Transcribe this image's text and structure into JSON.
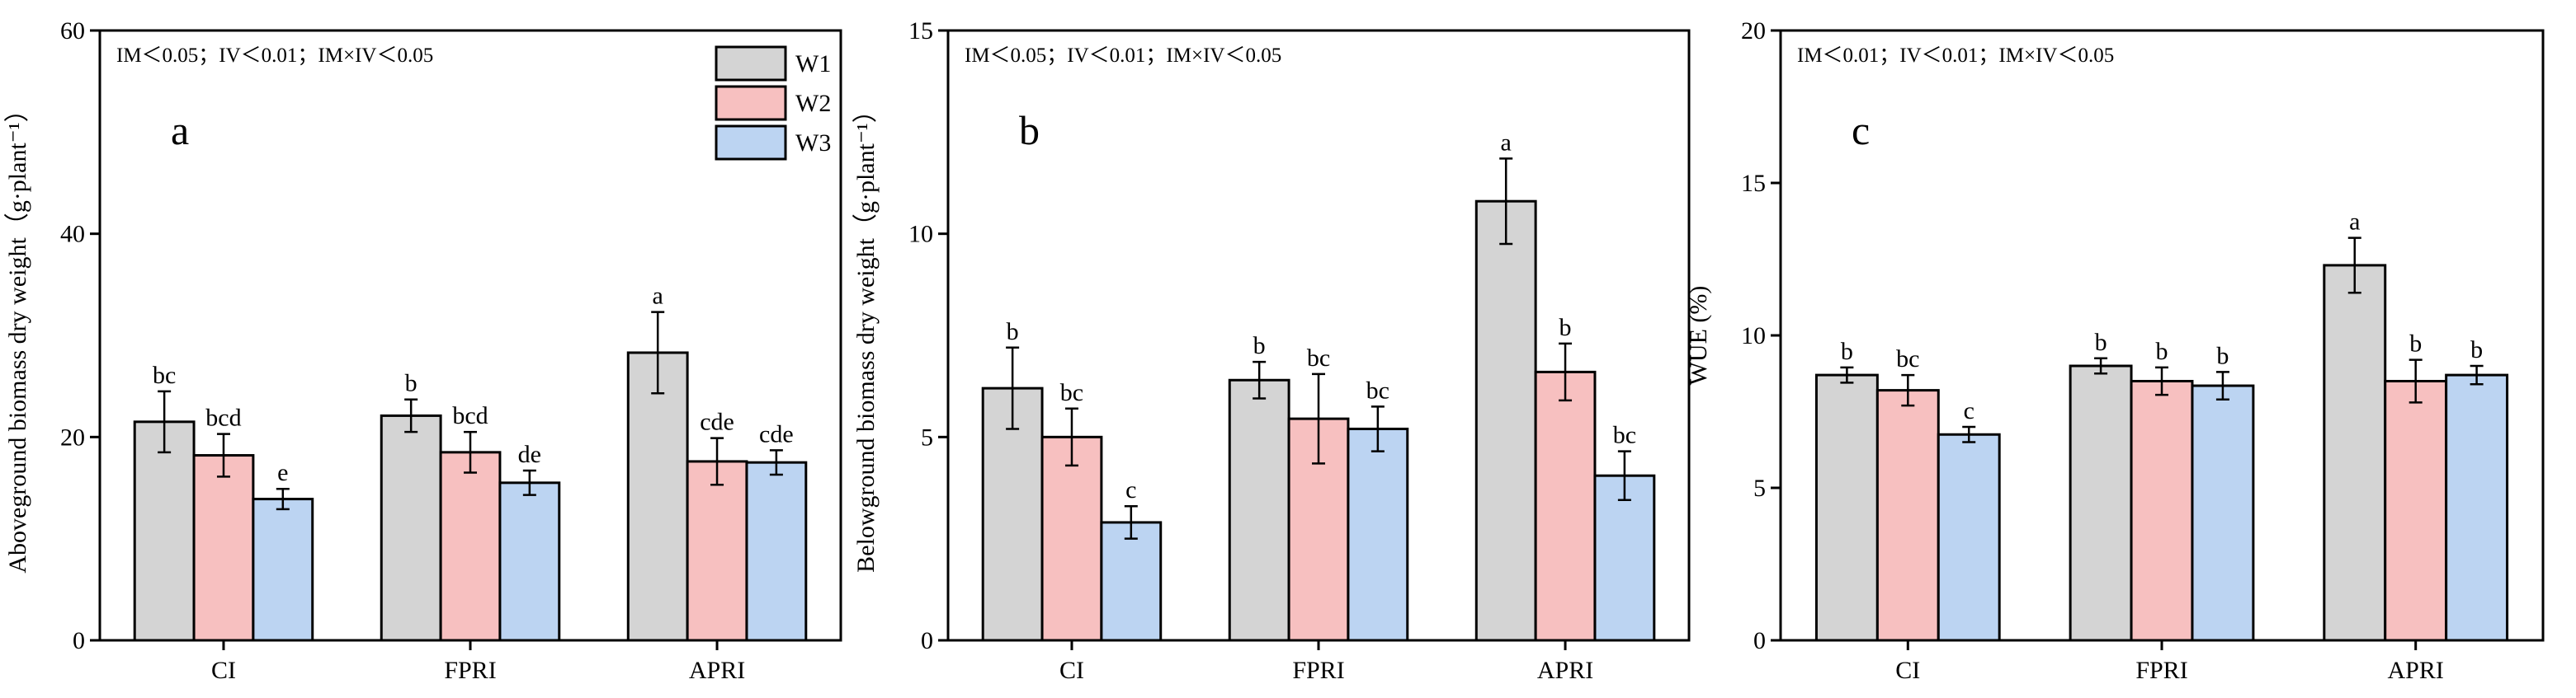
{
  "figure": {
    "legend": [
      {
        "name": "W1",
        "color": "#d4d4d4"
      },
      {
        "name": "W2",
        "color": "#f7c0c0"
      },
      {
        "name": "W3",
        "color": "#bcd4f2"
      }
    ],
    "colors": {
      "W1": "#d4d4d4",
      "W2": "#f7c0c0",
      "W3": "#bcd4f2",
      "axis": "#000000"
    }
  },
  "chart_data": [
    {
      "type": "bar",
      "panel": "a",
      "stats_text": "IM＜0.05；IV＜0.01；IM×IV＜0.05",
      "ylabel": "Aboveground biomass dry weight（g·plant⁻¹）",
      "xlabel": "",
      "ylim": [
        0,
        60
      ],
      "yticks": [
        0,
        20,
        40,
        60
      ],
      "categories": [
        "CI",
        "FPRI",
        "APRI"
      ],
      "series": [
        {
          "name": "W1",
          "values": [
            21.5,
            22.1,
            28.3
          ],
          "errors": [
            3.0,
            1.6,
            4.0
          ],
          "letters": [
            "bc",
            "b",
            "a"
          ]
        },
        {
          "name": "W2",
          "values": [
            18.2,
            18.5,
            17.6
          ],
          "errors": [
            2.1,
            2.0,
            2.3
          ],
          "letters": [
            "bcd",
            "bcd",
            "cde"
          ]
        },
        {
          "name": "W3",
          "values": [
            13.9,
            15.5,
            17.5
          ],
          "errors": [
            1.0,
            1.2,
            1.2
          ],
          "letters": [
            "e",
            "de",
            "cde"
          ]
        }
      ]
    },
    {
      "type": "bar",
      "panel": "b",
      "stats_text": "IM＜0.05；IV＜0.01；IM×IV＜0.05",
      "ylabel": "Belowground biomass dry weight（g·plant⁻¹）",
      "xlabel": "",
      "ylim": [
        0,
        15
      ],
      "yticks": [
        0,
        5,
        10,
        15
      ],
      "categories": [
        "CI",
        "FPRI",
        "APRI"
      ],
      "series": [
        {
          "name": "W1",
          "values": [
            6.2,
            6.4,
            10.8
          ],
          "errors": [
            1.0,
            0.45,
            1.05
          ],
          "letters": [
            "b",
            "b",
            "a"
          ]
        },
        {
          "name": "W2",
          "values": [
            5.0,
            5.45,
            6.6
          ],
          "errors": [
            0.7,
            1.1,
            0.7
          ],
          "letters": [
            "bc",
            "bc",
            "b"
          ]
        },
        {
          "name": "W3",
          "values": [
            2.9,
            5.2,
            4.05
          ],
          "errors": [
            0.4,
            0.55,
            0.6
          ],
          "letters": [
            "c",
            "bc",
            "bc"
          ]
        }
      ]
    },
    {
      "type": "bar",
      "panel": "c",
      "stats_text": "IM＜0.01；IV＜0.01；IM×IV＜0.05",
      "ylabel": "WUE (%)",
      "xlabel": "",
      "ylim": [
        0,
        20
      ],
      "yticks": [
        0,
        5,
        10,
        15,
        20
      ],
      "categories": [
        "CI",
        "FPRI",
        "APRI"
      ],
      "series": [
        {
          "name": "W1",
          "values": [
            8.7,
            9.0,
            12.3
          ],
          "errors": [
            0.25,
            0.25,
            0.9
          ],
          "letters": [
            "b",
            "b",
            "a"
          ]
        },
        {
          "name": "W2",
          "values": [
            8.2,
            8.5,
            8.5
          ],
          "errors": [
            0.5,
            0.45,
            0.7
          ],
          "letters": [
            "bc",
            "b",
            "b"
          ]
        },
        {
          "name": "W3",
          "values": [
            6.75,
            8.35,
            8.7
          ],
          "errors": [
            0.25,
            0.45,
            0.3
          ],
          "letters": [
            "c",
            "b",
            "b"
          ]
        }
      ]
    }
  ]
}
